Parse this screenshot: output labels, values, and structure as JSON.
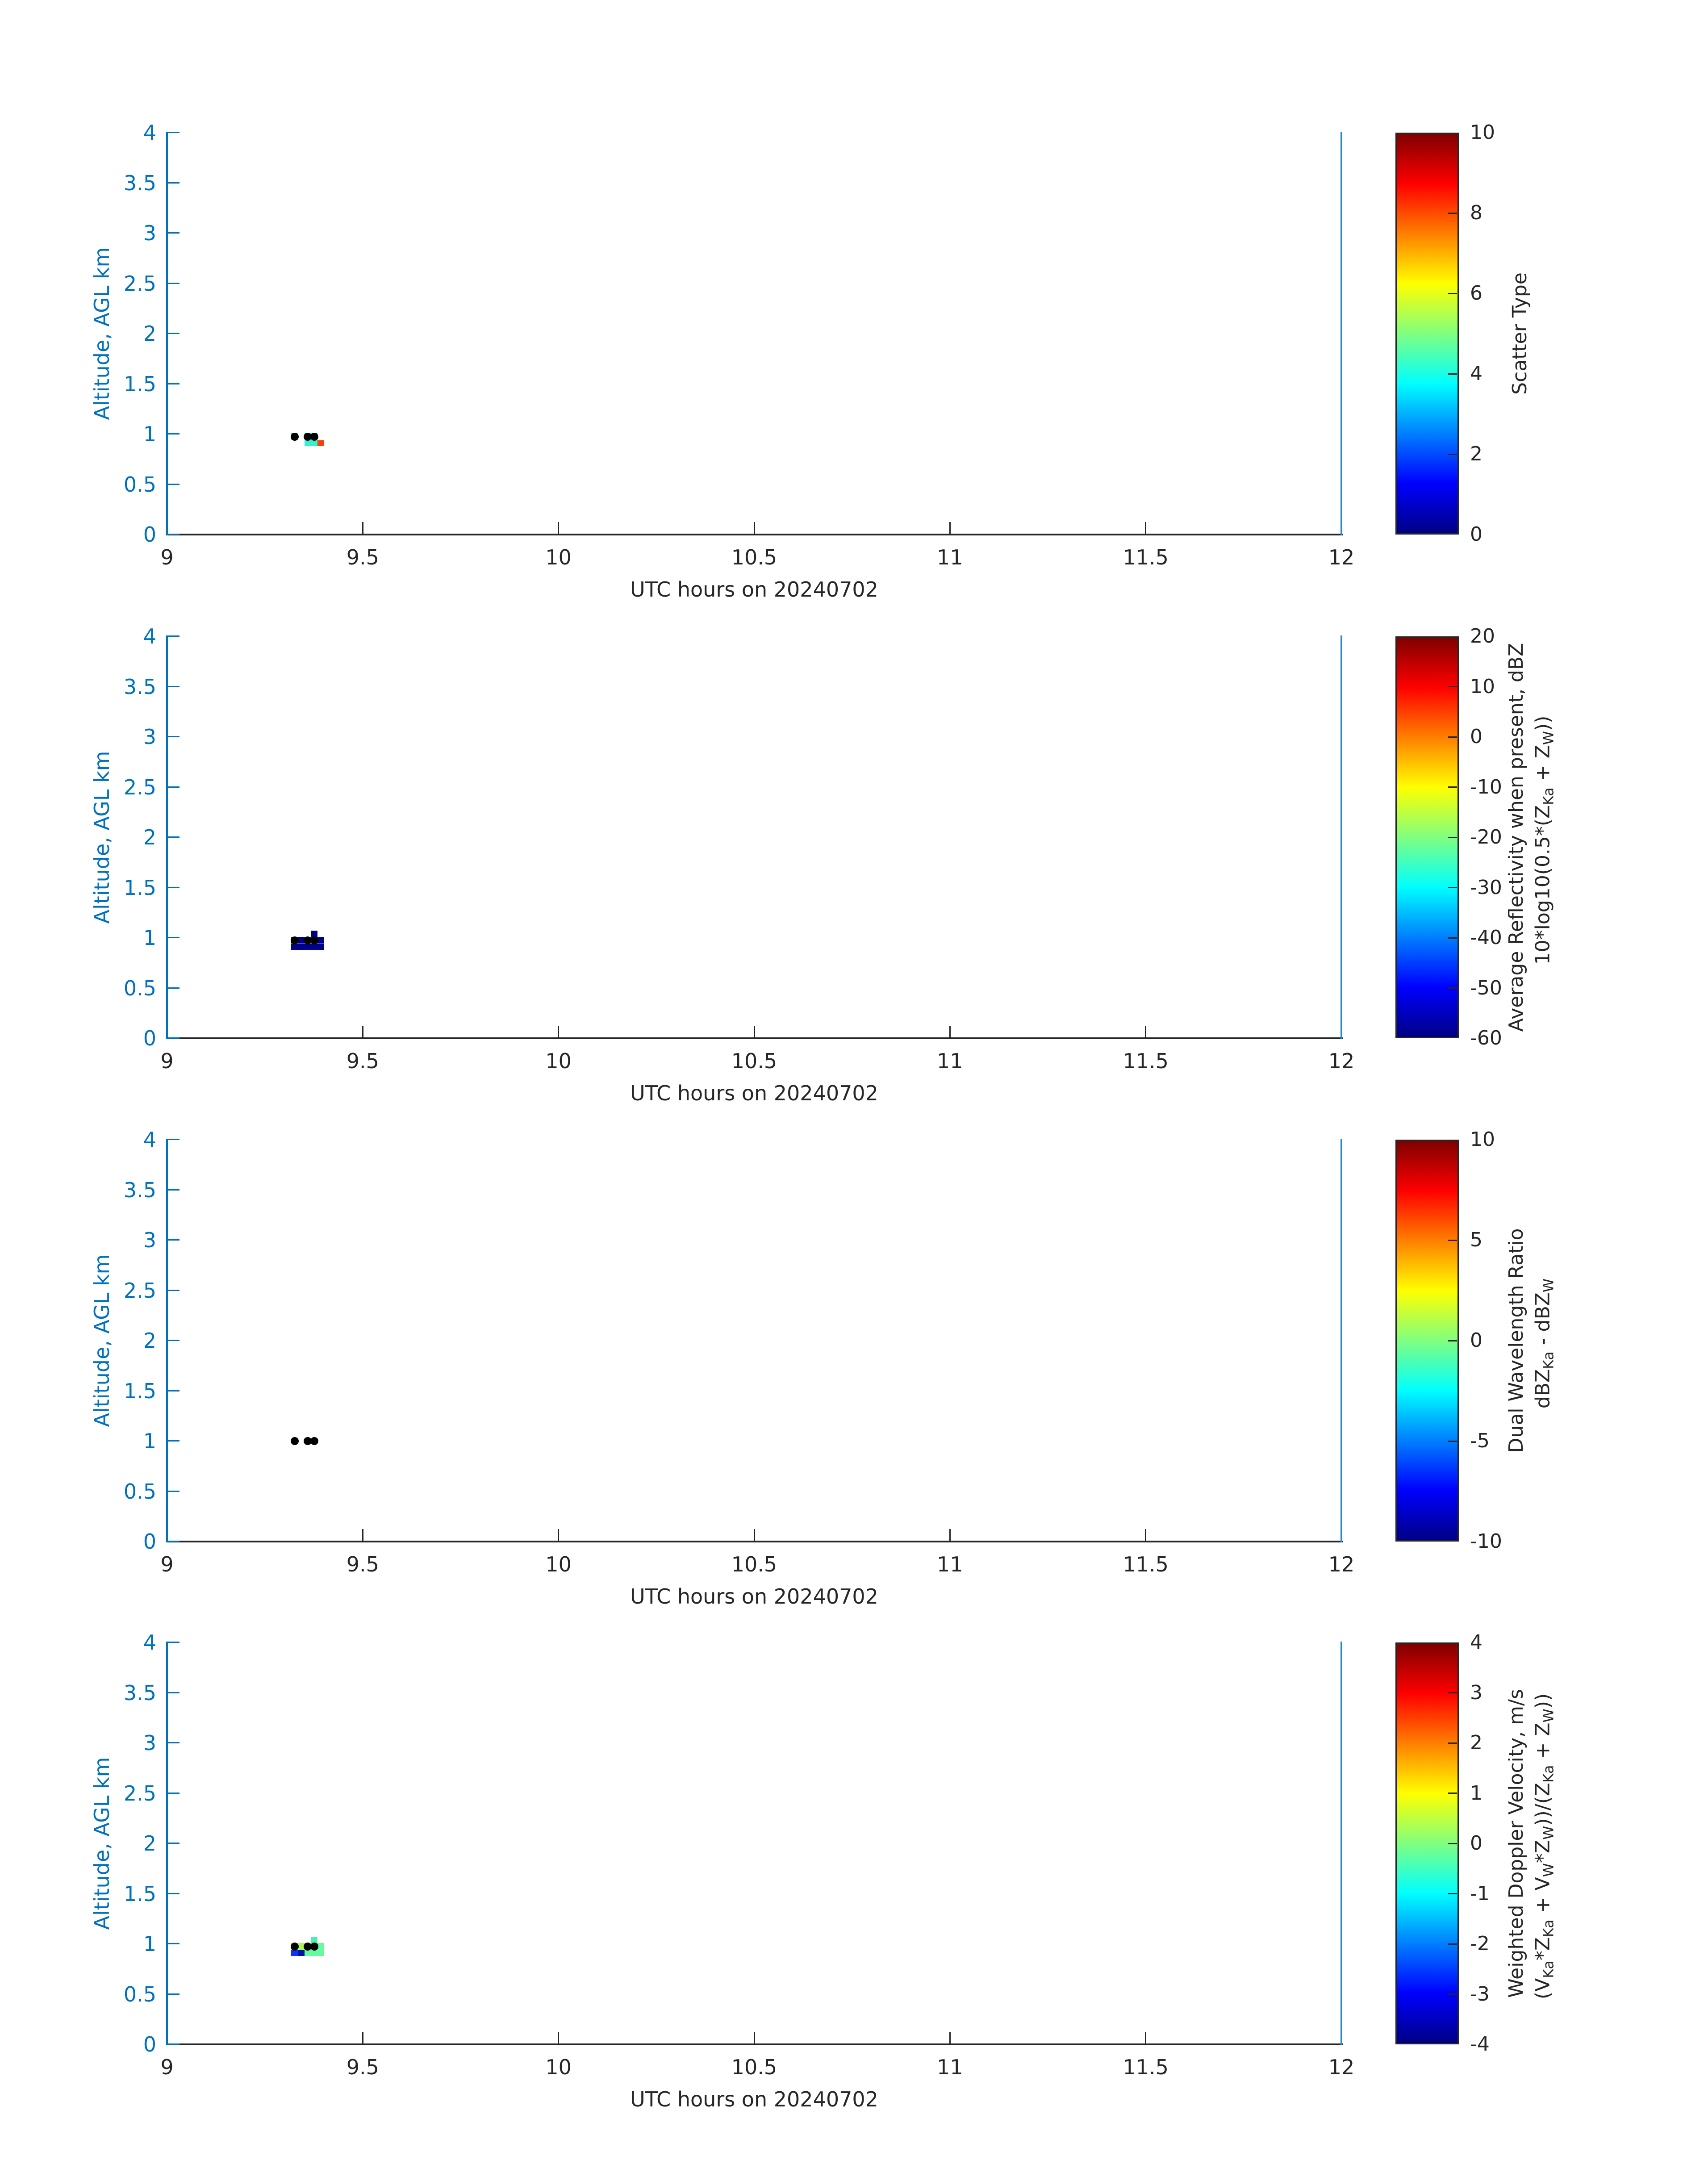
{
  "figure": {
    "background": "#ffffff",
    "date_label": "20240702",
    "axis": {
      "xlabel": "UTC hours on 20240702",
      "ylabel": "Altitude, AGL km",
      "xlim": [
        9,
        12
      ],
      "ylim": [
        0,
        4
      ],
      "x_tick_labels": [
        "9",
        "9.5",
        "10",
        "10.5",
        "11",
        "11.5",
        "12"
      ],
      "x_tick_values": [
        9,
        9.5,
        10,
        10.5,
        11,
        11.5,
        12
      ],
      "y_tick_labels": [
        "0",
        "0.5",
        "1",
        "1.5",
        "2",
        "2.5",
        "3",
        "3.5",
        "4"
      ],
      "y_tick_values": [
        0,
        0.5,
        1,
        1.5,
        2,
        2.5,
        3,
        3.5,
        4
      ],
      "grid": false
    },
    "colors": {
      "y_axis": "#0072BD",
      "right_spine": "#2987C8",
      "x_axis": "#262626",
      "dark_text": "#262626",
      "blue_text": "#0072BD",
      "dot": "#000000",
      "colorbar_border": "#262626",
      "jet_stops": [
        "#000085",
        "#0000FF",
        "#00FFFF",
        "#80FF80",
        "#FFFF00",
        "#FF0000",
        "#800000"
      ]
    }
  },
  "chart_data": [
    {
      "type": "heatmap",
      "panel": 1,
      "xlabel": "UTC hours on 20240702",
      "ylabel": "Altitude, AGL km",
      "xlim": [
        9,
        12
      ],
      "ylim": [
        0,
        4
      ],
      "legend_position": "right-colorbar",
      "colorbar": {
        "label_lines": [
          [
            [
              "t",
              "Scatter Type"
            ]
          ]
        ],
        "tick_labels": [
          "0",
          "2",
          "4",
          "6",
          "8",
          "10"
        ],
        "tick_values": [
          0,
          2,
          4,
          6,
          8,
          10
        ],
        "range": [
          0,
          10
        ],
        "colormap": "jet"
      },
      "cells": [
        {
          "t0": 9.317,
          "t1": 9.334,
          "a0": 0.94,
          "a1": 1.007,
          "value": 4,
          "color": "#35F1CE"
        },
        {
          "t0": 9.351,
          "t1": 9.384,
          "a0": 0.878,
          "a1": 1.007,
          "value": 4,
          "color": "#35F1CE"
        },
        {
          "t0": 9.384,
          "t1": 9.401,
          "a0": 0.878,
          "a1": 0.94,
          "value": 8.5,
          "color": "#F2410D"
        }
      ],
      "dots": [
        [
          9.326,
          0.973
        ],
        [
          9.359,
          0.973
        ],
        [
          9.376,
          0.973
        ]
      ]
    },
    {
      "type": "heatmap",
      "panel": 2,
      "xlabel": "UTC hours on 20240702",
      "ylabel": "Altitude, AGL km",
      "xlim": [
        9,
        12
      ],
      "ylim": [
        0,
        4
      ],
      "legend_position": "right-colorbar",
      "colorbar": {
        "label_lines": [
          [
            [
              "t",
              "Average Reflectivity when present, dBZ"
            ]
          ],
          [
            [
              "t",
              "10*log10(0.5*(Z"
            ],
            [
              "s",
              "Ka"
            ],
            [
              "t",
              " + Z"
            ],
            [
              "s",
              "W"
            ],
            [
              "t",
              "))"
            ]
          ]
        ],
        "tick_labels": [
          "-60",
          "-50",
          "-40",
          "-30",
          "-20",
          "-10",
          "0",
          "10",
          "20"
        ],
        "tick_values": [
          -60,
          -50,
          -40,
          -30,
          -20,
          -10,
          0,
          10,
          20
        ],
        "range": [
          -60,
          20
        ],
        "colormap": "jet"
      },
      "cells": [
        {
          "t0": 9.367,
          "t1": 9.384,
          "a0": 1.007,
          "a1": 1.069,
          "value": -58,
          "color": "#000089"
        },
        {
          "t0": 9.317,
          "t1": 9.334,
          "a0": 0.94,
          "a1": 1.007,
          "value": -50,
          "color": "#0221CE"
        },
        {
          "t0": 9.334,
          "t1": 9.351,
          "a0": 0.94,
          "a1": 1.007,
          "value": -58,
          "color": "#000089"
        },
        {
          "t0": 9.351,
          "t1": 9.367,
          "a0": 0.94,
          "a1": 1.007,
          "value": -49,
          "color": "#0A2BE0"
        },
        {
          "t0": 9.367,
          "t1": 9.384,
          "a0": 0.94,
          "a1": 1.007,
          "value": -50,
          "color": "#0221CE"
        },
        {
          "t0": 9.384,
          "t1": 9.401,
          "a0": 0.94,
          "a1": 1.007,
          "value": -58,
          "color": "#000089"
        },
        {
          "t0": 9.317,
          "t1": 9.401,
          "a0": 0.878,
          "a1": 0.94,
          "value": -58,
          "color": "#000089"
        }
      ],
      "dots": [
        [
          9.326,
          0.973
        ],
        [
          9.359,
          0.973
        ],
        [
          9.376,
          0.973
        ]
      ]
    },
    {
      "type": "heatmap",
      "panel": 3,
      "xlabel": "UTC hours on 20240702",
      "ylabel": "Altitude, AGL km",
      "xlim": [
        9,
        12
      ],
      "ylim": [
        0,
        4
      ],
      "legend_position": "right-colorbar",
      "colorbar": {
        "label_lines": [
          [
            [
              "t",
              "Dual Wavelength Ratio"
            ]
          ],
          [
            [
              "t",
              "dBZ"
            ],
            [
              "s",
              "Ka"
            ],
            [
              "t",
              " - dBZ"
            ],
            [
              "s",
              "W"
            ]
          ]
        ],
        "tick_labels": [
          "-10",
          "-5",
          "0",
          "5",
          "10"
        ],
        "tick_values": [
          -10,
          -5,
          0,
          5,
          10
        ],
        "range": [
          -10,
          10
        ],
        "colormap": "jet"
      },
      "cells": [],
      "dots": [
        [
          9.326,
          1.0
        ],
        [
          9.359,
          1.0
        ],
        [
          9.376,
          1.0
        ]
      ]
    },
    {
      "type": "heatmap",
      "panel": 4,
      "xlabel": "UTC hours on 20240702",
      "ylabel": "Altitude, AGL km",
      "xlim": [
        9,
        12
      ],
      "ylim": [
        0,
        4
      ],
      "legend_position": "right-colorbar",
      "colorbar": {
        "label_lines": [
          [
            [
              "t",
              "Weighted Doppler Velocity, m/s"
            ]
          ],
          [
            [
              "t",
              "(V"
            ],
            [
              "s",
              "Ka"
            ],
            [
              "t",
              "*Z"
            ],
            [
              "s",
              "Ka"
            ],
            [
              "t",
              " + V"
            ],
            [
              "s",
              "W"
            ],
            [
              "t",
              "*Z"
            ],
            [
              "s",
              "W"
            ],
            [
              "t",
              "))/(Z"
            ],
            [
              "s",
              "Ka"
            ],
            [
              "t",
              " + Z"
            ],
            [
              "s",
              "W"
            ],
            [
              "t",
              "))"
            ]
          ]
        ],
        "tick_labels": [
          "-4",
          "-3",
          "-2",
          "-1",
          "0",
          "1",
          "2",
          "3",
          "4"
        ],
        "tick_values": [
          -4,
          -3,
          -2,
          -1,
          0,
          1,
          2,
          3,
          4
        ],
        "range": [
          -4,
          4
        ],
        "colormap": "jet"
      },
      "cells": [
        {
          "t0": 9.367,
          "t1": 9.384,
          "a0": 1.007,
          "a1": 1.069,
          "value": -0.5,
          "color": "#4BF0AD"
        },
        {
          "t0": 9.317,
          "t1": 9.351,
          "a0": 0.94,
          "a1": 1.007,
          "value": 0.7,
          "color": "#A9F55E"
        },
        {
          "t0": 9.351,
          "t1": 9.384,
          "a0": 0.94,
          "a1": 1.007,
          "value": -0.2,
          "color": "#5EF79B"
        },
        {
          "t0": 9.384,
          "t1": 9.401,
          "a0": 0.94,
          "a1": 1.007,
          "value": -0.3,
          "color": "#66FA9E"
        },
        {
          "t0": 9.317,
          "t1": 9.334,
          "a0": 0.878,
          "a1": 0.94,
          "value": -2.7,
          "color": "#0A34F8"
        },
        {
          "t0": 9.334,
          "t1": 9.351,
          "a0": 0.878,
          "a1": 0.94,
          "value": -3.7,
          "color": "#0013A0"
        },
        {
          "t0": 9.351,
          "t1": 9.401,
          "a0": 0.878,
          "a1": 0.94,
          "value": -0.3,
          "color": "#66FA9E"
        }
      ],
      "dots": [
        [
          9.326,
          0.973
        ],
        [
          9.359,
          0.973
        ],
        [
          9.376,
          0.973
        ]
      ]
    }
  ]
}
